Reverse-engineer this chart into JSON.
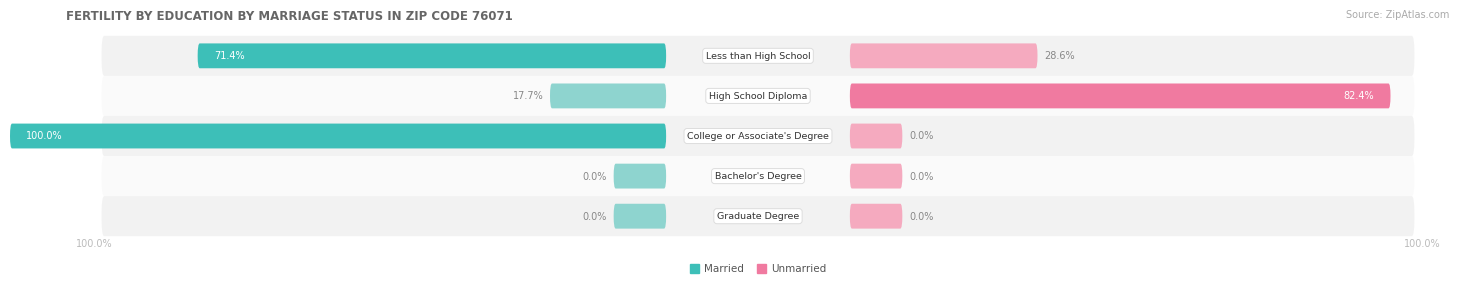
{
  "title": "FERTILITY BY EDUCATION BY MARRIAGE STATUS IN ZIP CODE 76071",
  "source": "Source: ZipAtlas.com",
  "categories": [
    "Less than High School",
    "High School Diploma",
    "College or Associate's Degree",
    "Bachelor's Degree",
    "Graduate Degree"
  ],
  "married": [
    71.4,
    17.7,
    100.0,
    0.0,
    0.0
  ],
  "unmarried": [
    28.6,
    82.4,
    0.0,
    0.0,
    0.0
  ],
  "married_color": "#3DBFB8",
  "unmarried_color": "#F07AA0",
  "married_light": "#8ED4CF",
  "unmarried_light": "#F5AABF",
  "row_bg_even": "#F2F2F2",
  "row_bg_odd": "#FAFAFA",
  "title_color": "#666666",
  "label_color": "#666666",
  "axis_label_color": "#BBBBBB",
  "source_color": "#AAAAAA",
  "legend_married": "Married",
  "legend_unmarried": "Unmarried",
  "background_color": "#FFFFFF",
  "value_inside_color": "#FFFFFF",
  "value_outside_color": "#888888"
}
